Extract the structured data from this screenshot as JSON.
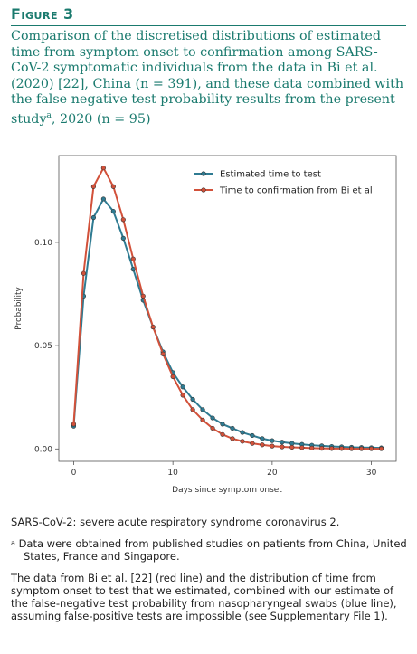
{
  "figure_label": "Figure 3",
  "caption_main": "Comparison of the discretised distributions of estimated time from symptom onset to confirmation among SARS-CoV-2 symptomatic individuals from the data in Bi et al. (2020) [22], China (n = 391), and these data combined with the false negative test probability results from the present study",
  "caption_sup": "a",
  "caption_tail": ", 2020 (n = 95)",
  "notes": {
    "abbrev": "SARS-CoV-2: severe acute respiratory syndrome coronavirus 2.",
    "footnote_mark": "a",
    "footnote": "Data were obtained from published studies on patients from China, United States, France and Singapore.",
    "description": "The data from Bi et al. [22] (red line) and the distribution of time from symptom onset to test that we estimated, combined with our estimate of the false-negative test probability from nasopharyngeal swabs (blue line), assuming false-positive tests are impossible (see Supplementary File 1)."
  },
  "colors": {
    "accent": "#1a7a6e",
    "blue": "#2f7b92",
    "red": "#d2513a"
  },
  "chart_data": {
    "type": "line",
    "xlabel": "Days since symptom onset",
    "ylabel": "Probability",
    "xlim": [
      -1.5,
      32.5
    ],
    "ylim": [
      -0.006,
      0.142
    ],
    "xticks": [
      0,
      10,
      20,
      30
    ],
    "yticks": [
      0.0,
      0.05,
      0.1
    ],
    "ytick_labels": [
      "0.00",
      "0.05",
      "0.10"
    ],
    "legend_position": "top-right",
    "x": [
      0,
      1,
      2,
      3,
      4,
      5,
      6,
      7,
      8,
      9,
      10,
      11,
      12,
      13,
      14,
      15,
      16,
      17,
      18,
      19,
      20,
      21,
      22,
      23,
      24,
      25,
      26,
      27,
      28,
      29,
      30,
      31
    ],
    "series": [
      {
        "name": "Estimated time to test",
        "color": "#2f7b92",
        "values": [
          0.011,
          0.074,
          0.112,
          0.121,
          0.115,
          0.102,
          0.087,
          0.072,
          0.059,
          0.047,
          0.037,
          0.03,
          0.024,
          0.019,
          0.015,
          0.012,
          0.01,
          0.008,
          0.0065,
          0.005,
          0.004,
          0.0033,
          0.0027,
          0.0022,
          0.0018,
          0.0015,
          0.0012,
          0.001,
          0.0008,
          0.0007,
          0.0006,
          0.0005
        ]
      },
      {
        "name": "Time to confirmation from Bi et al",
        "color": "#d2513a",
        "values": [
          0.012,
          0.085,
          0.127,
          0.136,
          0.127,
          0.111,
          0.092,
          0.074,
          0.059,
          0.046,
          0.035,
          0.026,
          0.019,
          0.014,
          0.01,
          0.007,
          0.005,
          0.0037,
          0.0027,
          0.002,
          0.0014,
          0.001,
          0.0008,
          0.0006,
          0.0004,
          0.0003,
          0.0002,
          0.0002,
          0.0001,
          0.0001,
          0.0001,
          0.0001
        ]
      }
    ]
  }
}
